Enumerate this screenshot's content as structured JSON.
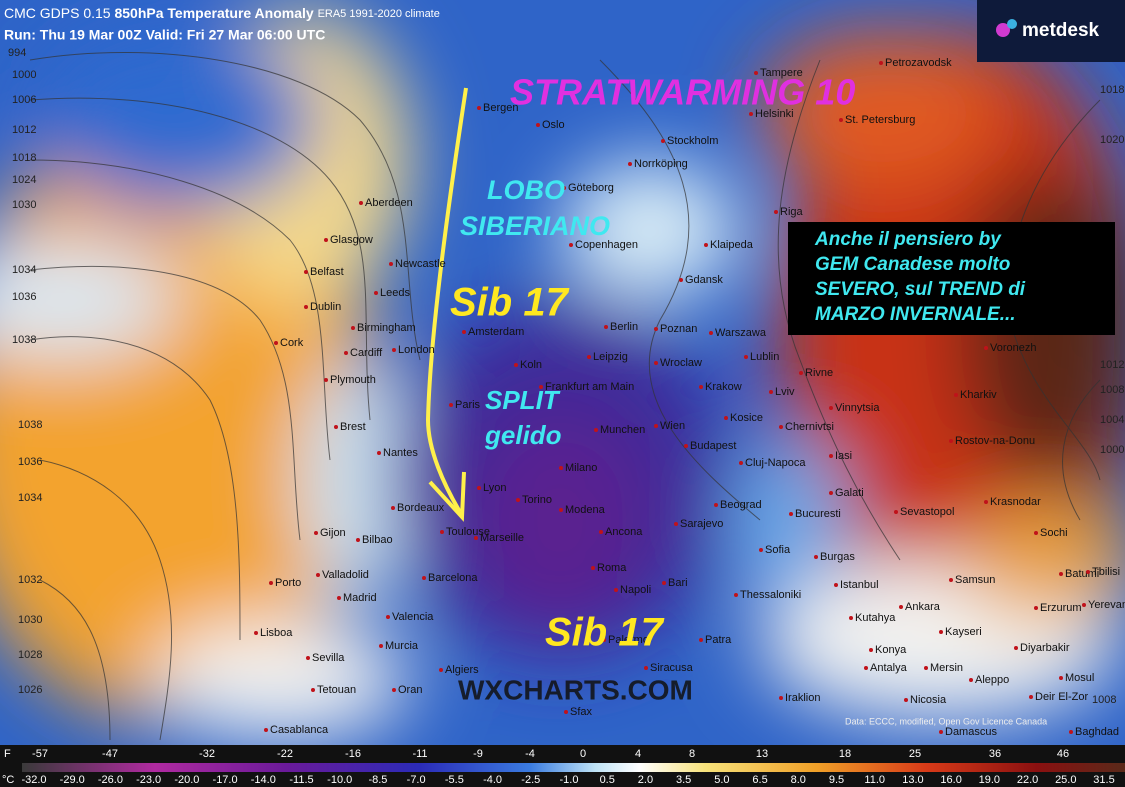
{
  "header": {
    "title_model": "CMC GDPS 0.15",
    "title_field": "850hPa Temperature Anomaly",
    "title_climate": "ERA5 1991-2020 climate",
    "run": "Run: Thu 19 Mar 00Z Valid: Fri 27 Mar 06:00 UTC"
  },
  "logo": "metdesk",
  "annotations": {
    "stratwarming": "STRATWARMING 10",
    "lobo": [
      "LOBO",
      "SIBERIANO"
    ],
    "sib_top": "Sib 17",
    "split": [
      "SPLIT",
      "gelido"
    ],
    "sib_bottom": "Sib 17",
    "box": [
      "Anche il pensiero by",
      "GEM Canadese molto",
      "SEVERO, sul TREND di",
      "MARZO INVERNALE..."
    ]
  },
  "watermark": "WXCHARTS.COM",
  "credit": "Data: ECCC, modified, Open Gov Licence Canada",
  "cities": [
    "Tampere",
    "Petrozavodsk",
    "Bergen",
    "Oslo",
    "Helsinki",
    "St. Petersburg",
    "Stockholm",
    "Norrköping",
    "Göteborg",
    "Riga",
    "Aberdeen",
    "Glasgow",
    "Klaipeda",
    "Newcastle",
    "Belfast",
    "Gdansk",
    "Leeds",
    "Dublin",
    "Copenhagen",
    "Berlin",
    "Poznan",
    "Warszawa",
    "Birmingham",
    "Cork",
    "Cardiff",
    "London",
    "Amsterdam",
    "Leipzig",
    "Wroclaw",
    "Lublin",
    "Plymouth",
    "Koln",
    "Frankfurt am Main",
    "Krakow",
    "Lviv",
    "Rivne",
    "Voronezh",
    "Kharkiv",
    "Brest",
    "Nantes",
    "Paris",
    "Munchen",
    "Wien",
    "Kosice",
    "Chernivtsi",
    "Vinnytsia",
    "Rostov-na-Donu",
    "Lyon",
    "Milano",
    "Budapest",
    "Cluj-Napoca",
    "Iasi",
    "Bordeaux",
    "Torino",
    "Modena",
    "Galati",
    "Krasnodar",
    "Sevastopol",
    "Toulouse",
    "Marseille",
    "Sarajevo",
    "Bucuresti",
    "Sochi",
    "Gijon",
    "Bilbao",
    "Ancona",
    "Beograd",
    "Sofia",
    "Burgas",
    "Batumi",
    "Tbilisi",
    "Valladolid",
    "Barcelona",
    "Roma",
    "Istanbul",
    "Samsun",
    "Porto",
    "Madrid",
    "Napoli",
    "Bari",
    "Thessaloniki",
    "Ankara",
    "Erzurum",
    "Yerevan",
    "Valencia",
    "Lisboa",
    "Kutahya",
    "Kayseri",
    "Murcia",
    "Palermo",
    "Sevilla",
    "Patra",
    "Konya",
    "Diyarbakir",
    "Siracusa",
    "Antalya",
    "Mersin",
    "Mosul",
    "Algiers",
    "Oran",
    "Tetouan",
    "Iraklion",
    "Nicosia",
    "Aleppo",
    "Deir El-Zor",
    "Casablanca",
    "Sfax",
    "Damascus",
    "Baghdad"
  ],
  "isobars": [
    994,
    1000,
    1006,
    1012,
    1018,
    1024,
    1030,
    1034,
    1036,
    1038,
    1038,
    1036,
    1034,
    1032,
    1030,
    1028,
    1026,
    1018,
    1020,
    1012,
    1008,
    1004,
    1000,
    1008
  ],
  "colorbar": {
    "f_unit": "F",
    "f_labels": [
      "-57",
      "-47",
      "-32",
      "-22",
      "-16",
      "-11",
      "-9",
      "-4",
      "0",
      "4",
      "8",
      "13",
      "18",
      "25",
      "36",
      "46"
    ],
    "c_unit": "°C",
    "c_labels": [
      "-32.0",
      "-29.0",
      "-26.0",
      "-23.0",
      "-20.0",
      "-17.0",
      "-14.0",
      "-11.5",
      "-10.0",
      "-8.5",
      "-7.0",
      "-5.5",
      "-4.0",
      "-2.5",
      "-1.0",
      "0.5",
      "2.0",
      "3.5",
      "5.0",
      "6.5",
      "8.0",
      "9.5",
      "11.0",
      "13.0",
      "16.0",
      "19.0",
      "22.0",
      "25.0",
      "31.5"
    ]
  }
}
